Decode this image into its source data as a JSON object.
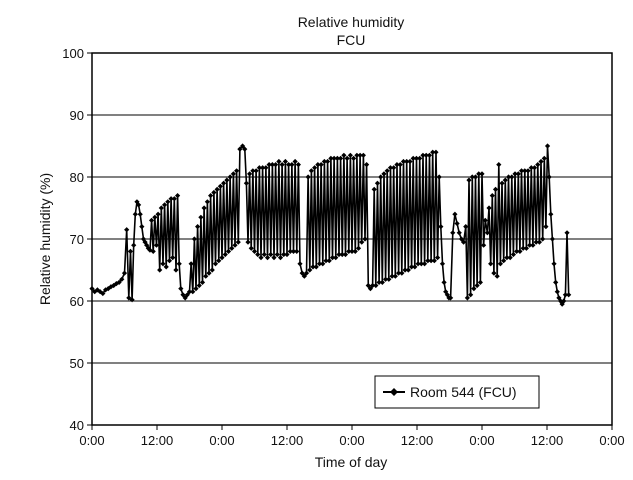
{
  "chart_data": {
    "type": "line",
    "title": "Relative humidity",
    "subtitle": "FCU",
    "xlabel": "Time of day",
    "ylabel": "Relative humidity (%)",
    "ylim": [
      40,
      100
    ],
    "yticks": [
      40,
      50,
      60,
      70,
      80,
      90,
      100
    ],
    "xlim_hours": [
      0,
      96
    ],
    "xticks": [
      {
        "hour": 0,
        "label": "0:00"
      },
      {
        "hour": 12,
        "label": "12:00"
      },
      {
        "hour": 24,
        "label": "0:00"
      },
      {
        "hour": 36,
        "label": "12:00"
      },
      {
        "hour": 48,
        "label": "0:00"
      },
      {
        "hour": 60,
        "label": "12:00"
      },
      {
        "hour": 72,
        "label": "0:00"
      },
      {
        "hour": 84,
        "label": "12:00"
      },
      {
        "hour": 96,
        "label": "0:00"
      }
    ],
    "grid": {
      "y": true,
      "x": false
    },
    "legend": {
      "position": "bottom-right"
    },
    "series": [
      {
        "name": "Room 544 (FCU)",
        "color": "#000000",
        "marker": "diamond",
        "points": [
          [
            0.0,
            62.0
          ],
          [
            0.5,
            61.5
          ],
          [
            1.0,
            61.8
          ],
          [
            1.5,
            61.5
          ],
          [
            2.0,
            61.2
          ],
          [
            2.5,
            61.8
          ],
          [
            3.0,
            62.0
          ],
          [
            3.5,
            62.3
          ],
          [
            4.0,
            62.5
          ],
          [
            4.5,
            62.8
          ],
          [
            5.0,
            63.0
          ],
          [
            5.5,
            63.5
          ],
          [
            6.0,
            64.5
          ],
          [
            6.4,
            71.5
          ],
          [
            6.8,
            60.5
          ],
          [
            7.1,
            68.0
          ],
          [
            7.4,
            60.2
          ],
          [
            7.7,
            69.0
          ],
          [
            8.0,
            74.0
          ],
          [
            8.3,
            76.0
          ],
          [
            8.6,
            75.5
          ],
          [
            8.9,
            74.0
          ],
          [
            9.2,
            72.0
          ],
          [
            9.5,
            70.0
          ],
          [
            9.8,
            69.5
          ],
          [
            10.1,
            69.0
          ],
          [
            10.4,
            68.5
          ],
          [
            10.7,
            68.2
          ],
          [
            11.0,
            73.0
          ],
          [
            11.3,
            68.0
          ],
          [
            11.6,
            73.5
          ],
          [
            11.9,
            69.0
          ],
          [
            12.2,
            74.0
          ],
          [
            12.5,
            65.0
          ],
          [
            12.8,
            75.0
          ],
          [
            13.1,
            66.0
          ],
          [
            13.4,
            75.5
          ],
          [
            13.7,
            65.5
          ],
          [
            14.0,
            76.0
          ],
          [
            14.3,
            66.5
          ],
          [
            14.6,
            76.5
          ],
          [
            14.9,
            67.0
          ],
          [
            15.2,
            76.5
          ],
          [
            15.5,
            65.0
          ],
          [
            15.8,
            77.0
          ],
          [
            16.1,
            66.0
          ],
          [
            16.4,
            62.0
          ],
          [
            16.8,
            61.0
          ],
          [
            17.2,
            60.5
          ],
          [
            17.6,
            61.0
          ],
          [
            18.0,
            61.5
          ],
          [
            18.3,
            66.0
          ],
          [
            18.6,
            61.5
          ],
          [
            18.9,
            70.0
          ],
          [
            19.2,
            62.0
          ],
          [
            19.5,
            72.0
          ],
          [
            19.8,
            62.5
          ],
          [
            20.1,
            73.5
          ],
          [
            20.4,
            63.0
          ],
          [
            20.7,
            75.0
          ],
          [
            21.0,
            64.0
          ],
          [
            21.3,
            76.0
          ],
          [
            21.6,
            64.5
          ],
          [
            21.9,
            77.0
          ],
          [
            22.2,
            65.0
          ],
          [
            22.5,
            77.5
          ],
          [
            22.8,
            66.0
          ],
          [
            23.1,
            78.0
          ],
          [
            23.4,
            66.5
          ],
          [
            23.7,
            78.5
          ],
          [
            24.0,
            67.0
          ],
          [
            24.3,
            79.0
          ],
          [
            24.6,
            67.5
          ],
          [
            24.9,
            79.5
          ],
          [
            25.2,
            68.0
          ],
          [
            25.5,
            80.0
          ],
          [
            25.8,
            68.5
          ],
          [
            26.1,
            80.5
          ],
          [
            26.4,
            69.0
          ],
          [
            26.7,
            81.0
          ],
          [
            27.0,
            69.5
          ],
          [
            27.3,
            84.5
          ],
          [
            27.8,
            85.0
          ],
          [
            28.2,
            84.5
          ],
          [
            28.5,
            79.0
          ],
          [
            28.8,
            69.5
          ],
          [
            29.1,
            80.5
          ],
          [
            29.4,
            68.5
          ],
          [
            29.7,
            81.0
          ],
          [
            30.0,
            68.0
          ],
          [
            30.3,
            81.0
          ],
          [
            30.6,
            67.5
          ],
          [
            30.9,
            81.5
          ],
          [
            31.2,
            67.0
          ],
          [
            31.5,
            81.5
          ],
          [
            31.8,
            67.5
          ],
          [
            32.1,
            81.5
          ],
          [
            32.4,
            67.0
          ],
          [
            32.7,
            82.0
          ],
          [
            33.0,
            67.5
          ],
          [
            33.3,
            82.0
          ],
          [
            33.6,
            67.0
          ],
          [
            33.9,
            82.0
          ],
          [
            34.2,
            67.5
          ],
          [
            34.5,
            82.5
          ],
          [
            34.8,
            67.0
          ],
          [
            35.1,
            82.0
          ],
          [
            35.4,
            67.5
          ],
          [
            35.7,
            82.5
          ],
          [
            36.0,
            67.5
          ],
          [
            36.3,
            82.0
          ],
          [
            36.6,
            68.0
          ],
          [
            36.9,
            82.0
          ],
          [
            37.2,
            68.0
          ],
          [
            37.5,
            82.5
          ],
          [
            37.8,
            68.0
          ],
          [
            38.1,
            82.0
          ],
          [
            38.4,
            66.0
          ],
          [
            38.8,
            64.5
          ],
          [
            39.2,
            64.0
          ],
          [
            39.6,
            64.5
          ],
          [
            39.9,
            80.0
          ],
          [
            40.2,
            65.0
          ],
          [
            40.5,
            81.0
          ],
          [
            40.8,
            65.5
          ],
          [
            41.1,
            81.5
          ],
          [
            41.4,
            65.5
          ],
          [
            41.7,
            82.0
          ],
          [
            42.0,
            66.0
          ],
          [
            42.3,
            82.0
          ],
          [
            42.6,
            66.0
          ],
          [
            42.9,
            82.5
          ],
          [
            43.2,
            66.5
          ],
          [
            43.5,
            82.5
          ],
          [
            43.8,
            66.5
          ],
          [
            44.1,
            83.0
          ],
          [
            44.4,
            67.0
          ],
          [
            44.7,
            83.0
          ],
          [
            45.0,
            67.0
          ],
          [
            45.3,
            83.0
          ],
          [
            45.6,
            67.5
          ],
          [
            45.9,
            83.0
          ],
          [
            46.2,
            67.5
          ],
          [
            46.5,
            83.5
          ],
          [
            46.8,
            67.5
          ],
          [
            47.1,
            83.0
          ],
          [
            47.4,
            68.0
          ],
          [
            47.7,
            83.5
          ],
          [
            48.0,
            68.0
          ],
          [
            48.3,
            83.0
          ],
          [
            48.6,
            68.0
          ],
          [
            48.9,
            83.5
          ],
          [
            49.2,
            68.5
          ],
          [
            49.5,
            83.5
          ],
          [
            49.8,
            69.5
          ],
          [
            50.1,
            83.5
          ],
          [
            50.4,
            70.0
          ],
          [
            50.7,
            82.0
          ],
          [
            51.0,
            62.5
          ],
          [
            51.4,
            62.0
          ],
          [
            51.8,
            62.5
          ],
          [
            52.1,
            78.0
          ],
          [
            52.4,
            62.5
          ],
          [
            52.7,
            79.0
          ],
          [
            53.0,
            63.0
          ],
          [
            53.3,
            80.0
          ],
          [
            53.6,
            63.0
          ],
          [
            53.9,
            80.5
          ],
          [
            54.2,
            63.5
          ],
          [
            54.5,
            81.0
          ],
          [
            54.8,
            63.5
          ],
          [
            55.1,
            81.5
          ],
          [
            55.4,
            64.0
          ],
          [
            55.7,
            81.5
          ],
          [
            56.0,
            64.0
          ],
          [
            56.3,
            82.0
          ],
          [
            56.6,
            64.5
          ],
          [
            56.9,
            82.0
          ],
          [
            57.2,
            64.5
          ],
          [
            57.5,
            82.5
          ],
          [
            57.8,
            65.0
          ],
          [
            58.1,
            82.5
          ],
          [
            58.4,
            65.0
          ],
          [
            58.7,
            82.5
          ],
          [
            59.0,
            65.5
          ],
          [
            59.3,
            83.0
          ],
          [
            59.6,
            65.5
          ],
          [
            59.9,
            83.0
          ],
          [
            60.2,
            66.0
          ],
          [
            60.5,
            83.0
          ],
          [
            60.8,
            66.0
          ],
          [
            61.1,
            83.5
          ],
          [
            61.4,
            66.0
          ],
          [
            61.7,
            83.5
          ],
          [
            62.0,
            66.5
          ],
          [
            62.3,
            83.5
          ],
          [
            62.6,
            66.5
          ],
          [
            62.9,
            84.0
          ],
          [
            63.2,
            66.5
          ],
          [
            63.5,
            84.0
          ],
          [
            63.8,
            67.0
          ],
          [
            64.1,
            80.0
          ],
          [
            64.4,
            72.0
          ],
          [
            64.7,
            66.0
          ],
          [
            65.0,
            63.0
          ],
          [
            65.3,
            61.5
          ],
          [
            65.6,
            61.0
          ],
          [
            65.9,
            60.5
          ],
          [
            66.2,
            60.5
          ],
          [
            66.6,
            71.0
          ],
          [
            67.0,
            74.0
          ],
          [
            67.4,
            72.5
          ],
          [
            67.8,
            71.0
          ],
          [
            68.2,
            70.0
          ],
          [
            68.6,
            69.5
          ],
          [
            69.0,
            72.0
          ],
          [
            69.3,
            60.5
          ],
          [
            69.6,
            79.5
          ],
          [
            69.9,
            61.0
          ],
          [
            70.2,
            80.0
          ],
          [
            70.5,
            62.0
          ],
          [
            70.8,
            80.0
          ],
          [
            71.1,
            62.5
          ],
          [
            71.4,
            80.5
          ],
          [
            71.7,
            63.0
          ],
          [
            72.0,
            80.5
          ],
          [
            72.3,
            69.0
          ],
          [
            72.6,
            73.0
          ],
          [
            73.0,
            71.0
          ],
          [
            73.3,
            75.0
          ],
          [
            73.6,
            66.0
          ],
          [
            73.9,
            77.0
          ],
          [
            74.2,
            64.5
          ],
          [
            74.5,
            78.0
          ],
          [
            74.8,
            64.0
          ],
          [
            75.1,
            82.0
          ],
          [
            75.4,
            66.0
          ],
          [
            75.7,
            79.0
          ],
          [
            76.0,
            66.5
          ],
          [
            76.3,
            79.5
          ],
          [
            76.6,
            67.0
          ],
          [
            76.9,
            80.0
          ],
          [
            77.2,
            67.0
          ],
          [
            77.5,
            80.0
          ],
          [
            77.8,
            67.5
          ],
          [
            78.1,
            80.5
          ],
          [
            78.4,
            68.0
          ],
          [
            78.7,
            80.5
          ],
          [
            79.0,
            68.0
          ],
          [
            79.3,
            81.0
          ],
          [
            79.6,
            68.5
          ],
          [
            79.9,
            81.0
          ],
          [
            80.2,
            68.5
          ],
          [
            80.5,
            81.0
          ],
          [
            80.8,
            69.0
          ],
          [
            81.1,
            81.5
          ],
          [
            81.4,
            69.0
          ],
          [
            81.7,
            81.5
          ],
          [
            82.0,
            69.5
          ],
          [
            82.3,
            82.0
          ],
          [
            82.6,
            69.5
          ],
          [
            82.9,
            82.5
          ],
          [
            83.2,
            70.0
          ],
          [
            83.5,
            83.0
          ],
          [
            83.8,
            72.0
          ],
          [
            84.1,
            85.0
          ],
          [
            84.4,
            80.0
          ],
          [
            84.7,
            74.0
          ],
          [
            85.0,
            70.0
          ],
          [
            85.3,
            66.0
          ],
          [
            85.6,
            63.0
          ],
          [
            85.9,
            61.5
          ],
          [
            86.2,
            60.5
          ],
          [
            86.5,
            60.0
          ],
          [
            86.8,
            59.5
          ],
          [
            87.1,
            60.0
          ],
          [
            87.4,
            61.0
          ],
          [
            87.7,
            71.0
          ],
          [
            88.0,
            61.0
          ]
        ]
      }
    ]
  }
}
